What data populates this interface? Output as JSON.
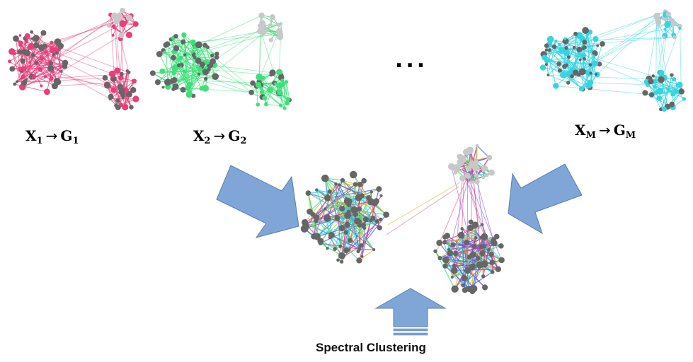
{
  "labels": {
    "g1": {
      "x": "X",
      "xsub": "1",
      "arrow": "→",
      "g": "G",
      "gsub": "1"
    },
    "g2": {
      "x": "X",
      "xsub": "2",
      "arrow": "→",
      "g": "G",
      "gsub": "2"
    },
    "gm": {
      "x": "X",
      "xsub": "M",
      "arrow": "→",
      "g": "G",
      "gsub": "M"
    }
  },
  "ellipsis": "...",
  "method_label": "Spectral Clustering",
  "colors": {
    "graph1": "#e83f7a",
    "graph2": "#3ee07a",
    "graphM": "#36d4e0",
    "node_dark": "#666666",
    "node_light": "#c8c8c8",
    "arrow_fill": "#7fa6d6",
    "arrow_stroke": "#5a7fb0"
  }
}
